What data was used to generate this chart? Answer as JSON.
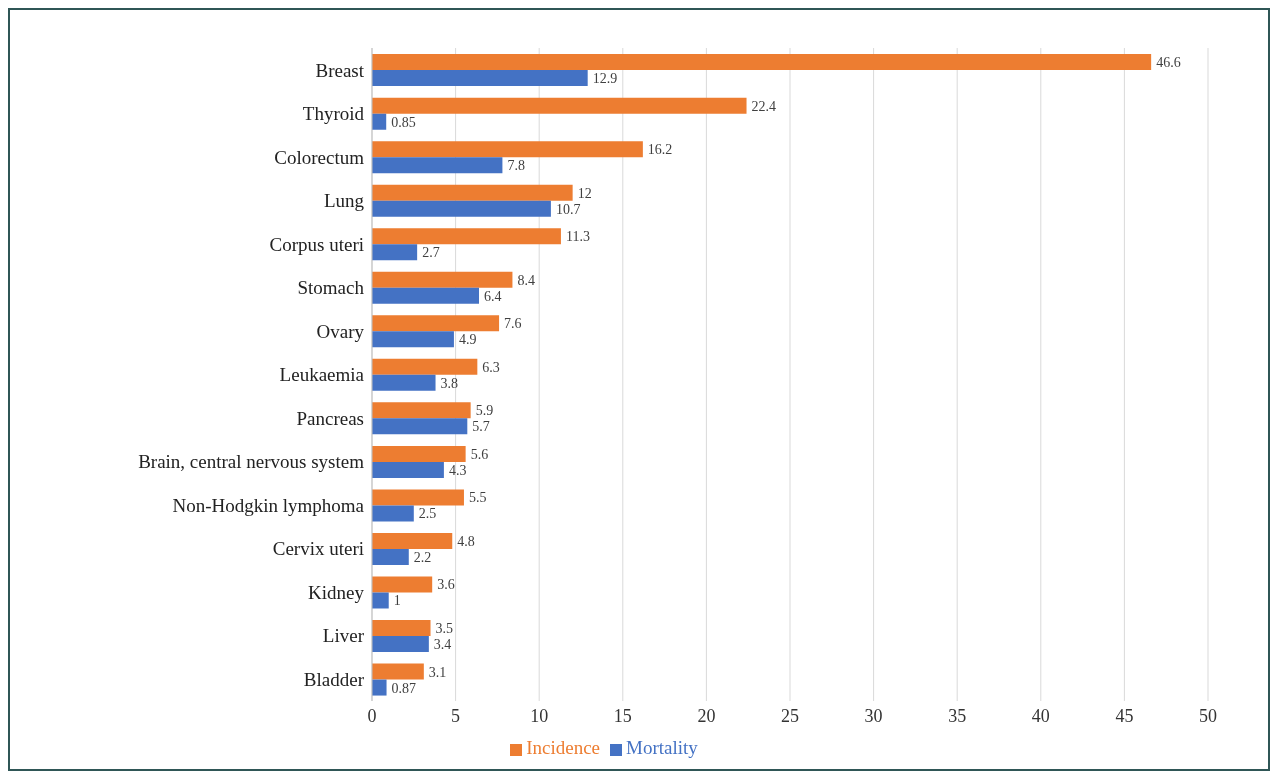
{
  "chart_data": {
    "type": "bar",
    "orientation": "horizontal",
    "categories": [
      "Breast",
      "Thyroid",
      "Colorectum",
      "Lung",
      "Corpus uteri",
      "Stomach",
      "Ovary",
      "Leukaemia",
      "Pancreas",
      "Brain, central nervous system",
      "Non-Hodgkin lymphoma",
      "Cervix uteri",
      "Kidney",
      "Liver",
      "Bladder"
    ],
    "series": [
      {
        "name": "Incidence",
        "color": "#ed7d31",
        "values": [
          46.6,
          22.4,
          16.2,
          12,
          11.3,
          8.4,
          7.6,
          6.3,
          5.9,
          5.6,
          5.5,
          4.8,
          3.6,
          3.5,
          3.1
        ]
      },
      {
        "name": "Mortality",
        "color": "#4472c4",
        "values": [
          12.9,
          0.85,
          7.8,
          10.7,
          2.7,
          6.4,
          4.9,
          3.8,
          5.7,
          4.3,
          2.5,
          2.2,
          1,
          3.4,
          0.87
        ]
      }
    ],
    "xlim": [
      0,
      50
    ],
    "xticks": [
      0,
      5,
      10,
      15,
      20,
      25,
      30,
      35,
      40,
      45,
      50
    ],
    "grid": "x",
    "legend": "bottom",
    "data_labels": true
  }
}
